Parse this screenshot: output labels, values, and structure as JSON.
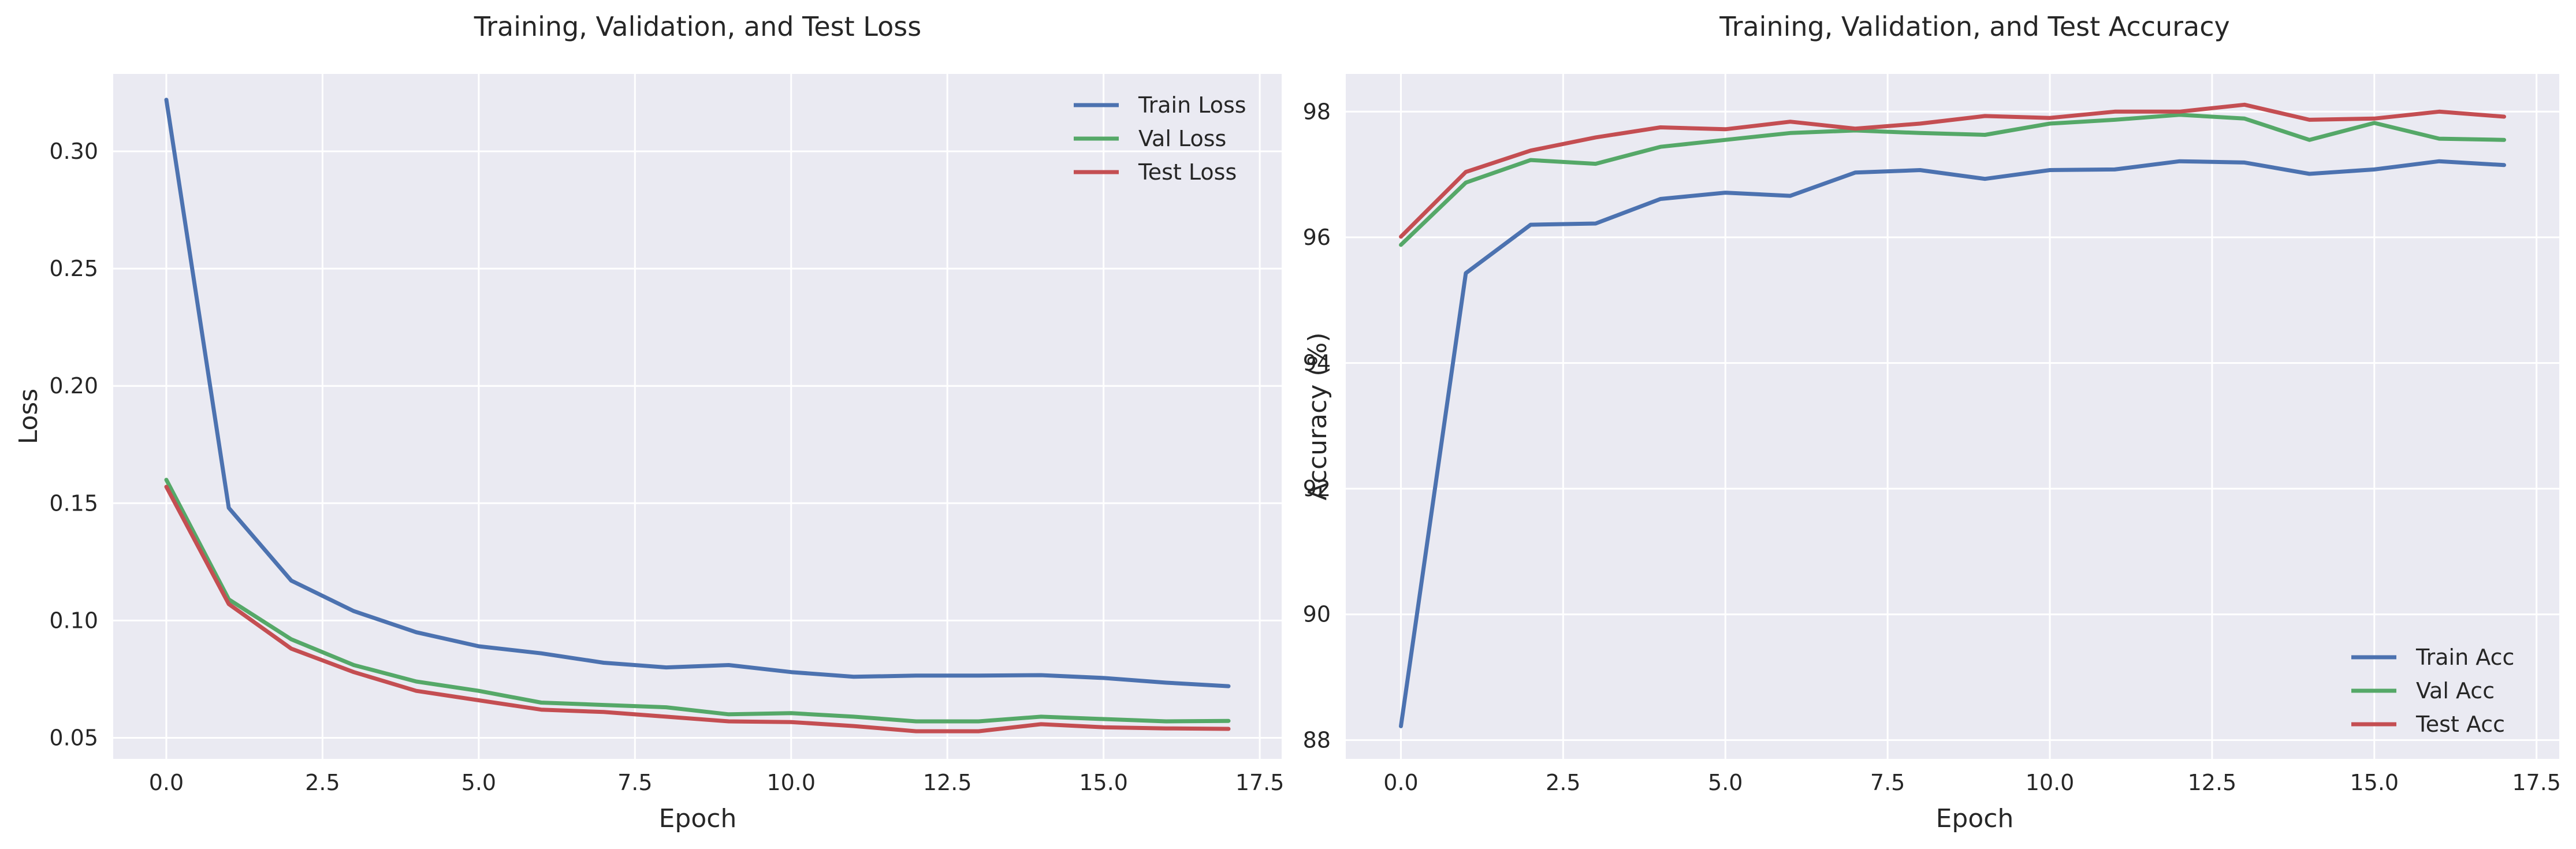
{
  "chart_data": [
    {
      "type": "line",
      "title": "Training, Validation, and Test Loss",
      "xlabel": "Epoch",
      "ylabel": "Loss",
      "xlim": [
        -0.85,
        17.85
      ],
      "ylim": [
        0.041,
        0.333
      ],
      "xticks": [
        0,
        2.5,
        5,
        7.5,
        10,
        12.5,
        15,
        17.5
      ],
      "xtick_labels": [
        "0.0",
        "2.5",
        "5.0",
        "7.5",
        "10.0",
        "12.5",
        "15.0",
        "17.5"
      ],
      "yticks": [
        0.05,
        0.1,
        0.15,
        0.2,
        0.25,
        0.3
      ],
      "ytick_labels": [
        "0.05",
        "0.10",
        "0.15",
        "0.20",
        "0.25",
        "0.30"
      ],
      "grid": true,
      "legend_position": "top-right",
      "x": [
        0,
        1,
        2,
        3,
        4,
        5,
        6,
        7,
        8,
        9,
        10,
        11,
        12,
        13,
        14,
        15,
        16,
        17
      ],
      "series": [
        {
          "name": "Train Loss",
          "color": "#4c72b0",
          "values": [
            0.322,
            0.148,
            0.117,
            0.104,
            0.095,
            0.089,
            0.086,
            0.082,
            0.08,
            0.081,
            0.078,
            0.076,
            0.0765,
            0.0765,
            0.0767,
            0.0755,
            0.0735,
            0.072
          ]
        },
        {
          "name": "Val Loss",
          "color": "#55a868",
          "values": [
            0.16,
            0.109,
            0.092,
            0.081,
            0.074,
            0.07,
            0.065,
            0.064,
            0.063,
            0.06,
            0.0605,
            0.059,
            0.057,
            0.057,
            0.059,
            0.058,
            0.057,
            0.0572
          ]
        },
        {
          "name": "Test Loss",
          "color": "#c44e52",
          "values": [
            0.157,
            0.107,
            0.088,
            0.078,
            0.07,
            0.066,
            0.062,
            0.061,
            0.059,
            0.057,
            0.0567,
            0.055,
            0.0528,
            0.0528,
            0.0558,
            0.0545,
            0.054,
            0.0538
          ]
        }
      ]
    },
    {
      "type": "line",
      "title": "Training, Validation, and Test Accuracy",
      "xlabel": "Epoch",
      "ylabel": "Accuracy (%)",
      "xlim": [
        -0.85,
        17.85
      ],
      "ylim": [
        87.7,
        98.6
      ],
      "xticks": [
        0,
        2.5,
        5,
        7.5,
        10,
        12.5,
        15,
        17.5
      ],
      "xtick_labels": [
        "0.0",
        "2.5",
        "5.0",
        "7.5",
        "10.0",
        "12.5",
        "15.0",
        "17.5"
      ],
      "yticks": [
        88,
        90,
        92,
        94,
        96,
        98
      ],
      "ytick_labels": [
        "88",
        "90",
        "92",
        "94",
        "96",
        "98"
      ],
      "grid": true,
      "legend_position": "bottom-right",
      "x": [
        0,
        1,
        2,
        3,
        4,
        5,
        6,
        7,
        8,
        9,
        10,
        11,
        12,
        13,
        14,
        15,
        16,
        17
      ],
      "series": [
        {
          "name": "Train Acc",
          "color": "#4c72b0",
          "values": [
            88.22,
            95.43,
            96.2,
            96.22,
            96.61,
            96.71,
            96.66,
            97.03,
            97.07,
            96.93,
            97.07,
            97.08,
            97.21,
            97.19,
            97.01,
            97.08,
            97.21,
            97.15
          ]
        },
        {
          "name": "Val Acc",
          "color": "#55a868",
          "values": [
            95.88,
            96.87,
            97.23,
            97.17,
            97.44,
            97.55,
            97.66,
            97.7,
            97.66,
            97.63,
            97.81,
            97.87,
            97.95,
            97.89,
            97.55,
            97.82,
            97.57,
            97.55
          ]
        },
        {
          "name": "Test Acc",
          "color": "#c44e52",
          "values": [
            96.01,
            97.04,
            97.38,
            97.59,
            97.75,
            97.72,
            97.84,
            97.73,
            97.81,
            97.93,
            97.9,
            98.0,
            98.0,
            98.11,
            97.87,
            97.89,
            98.0,
            97.92
          ]
        }
      ]
    }
  ]
}
